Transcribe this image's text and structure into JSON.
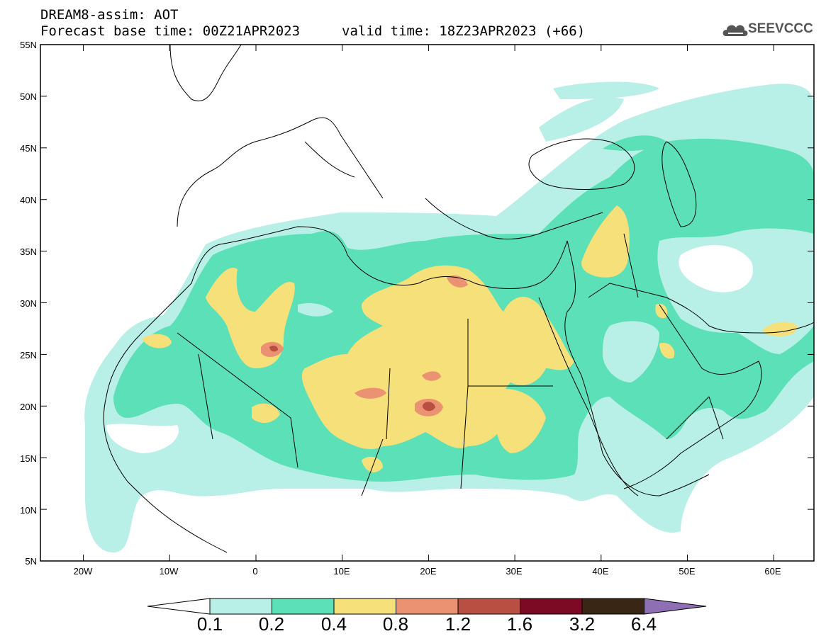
{
  "header": {
    "title": "DREAM8-assim: AOT",
    "base_time": "Forecast base time: 00Z21APR2023",
    "valid_time": "valid time: 18Z23APR2023 (+66)"
  },
  "logo": {
    "text": "SEEVCCC",
    "icon": "cloud-icon"
  },
  "axes": {
    "lat_labels": [
      "55N",
      "50N",
      "45N",
      "40N",
      "35N",
      "30N",
      "25N",
      "20N",
      "15N",
      "10N",
      "5N"
    ],
    "lon_labels": [
      "20W",
      "10W",
      "0",
      "10E",
      "20E",
      "30E",
      "40E",
      "50E",
      "60E"
    ]
  },
  "colorbar": {
    "labels": [
      "0.1",
      "0.2",
      "0.4",
      "0.8",
      "1.2",
      "1.6",
      "3.2",
      "6.4"
    ],
    "colors": [
      "#ffffff",
      "#b8efe6",
      "#5ce0b8",
      "#f5e07a",
      "#ea9271",
      "#b84f42",
      "#7d0a25",
      "#3a2614",
      "#8e6fb4"
    ]
  }
}
